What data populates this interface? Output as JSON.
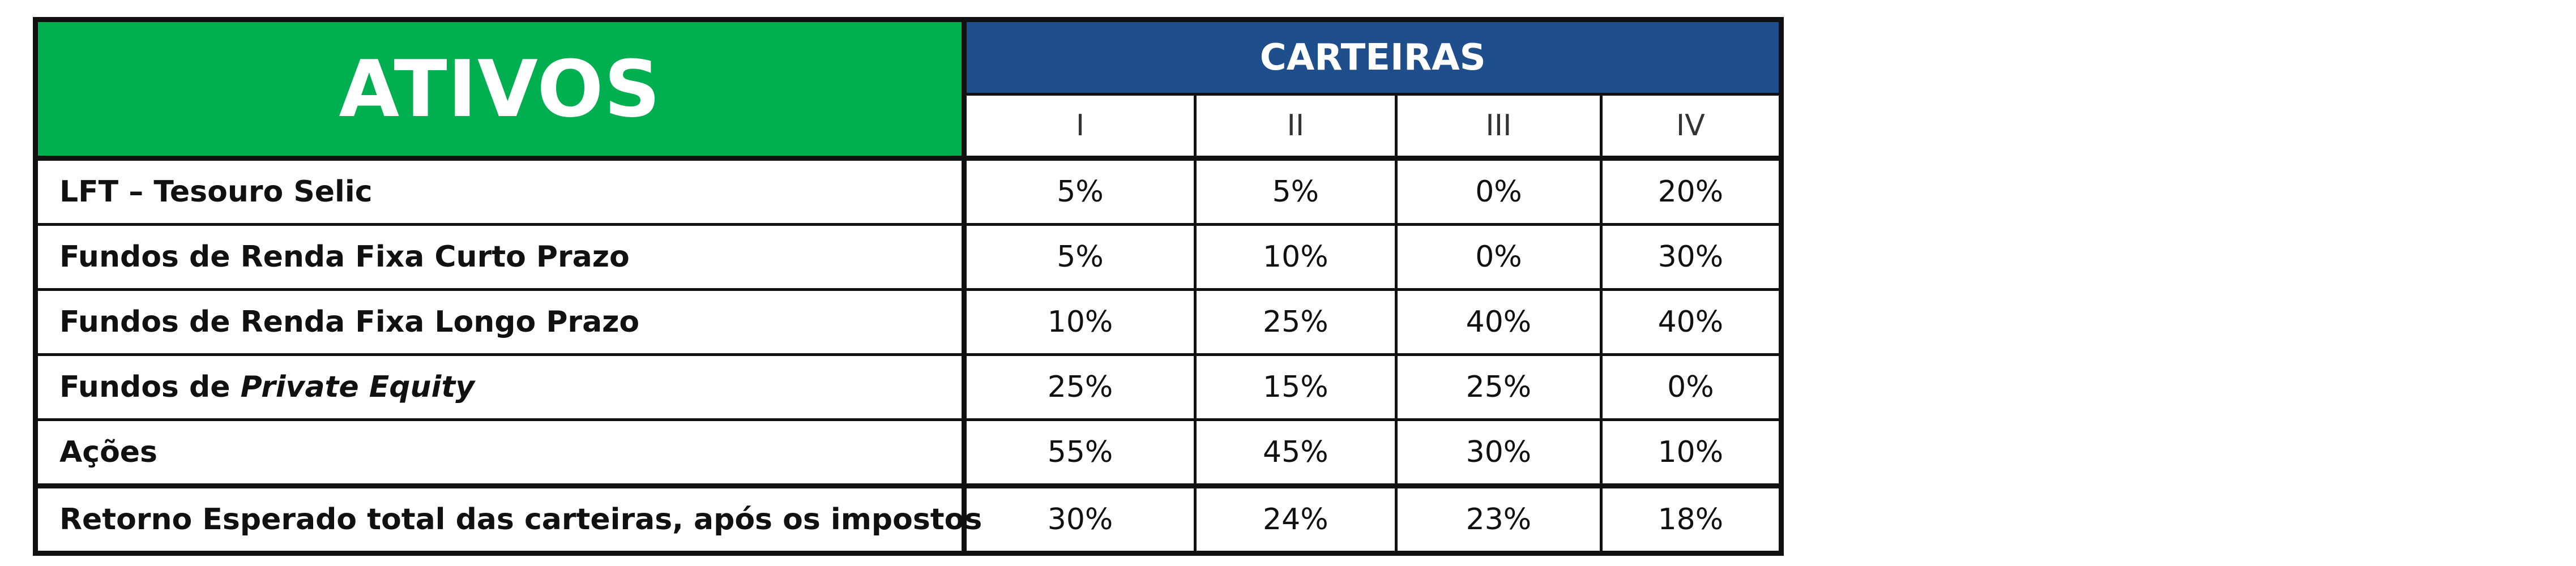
{
  "header": {
    "ativos_label": "ATIVOS",
    "carteiras_label": "CARTEIRAS",
    "portfolios": [
      "I",
      "II",
      "III",
      "IV"
    ]
  },
  "rows": [
    {
      "asset": "LFT – Tesouro Selic",
      "values": [
        "5%",
        "5%",
        "0%",
        "20%"
      ]
    },
    {
      "asset": "Fundos de Renda Fixa Curto Prazo",
      "values": [
        "5%",
        "10%",
        "0%",
        "30%"
      ]
    },
    {
      "asset": "Fundos de Renda Fixa Longo Prazo",
      "values": [
        "10%",
        "25%",
        "40%",
        "40%"
      ]
    },
    {
      "asset_prefix": "Fundos de ",
      "asset_italic": "Private Equity",
      "values": [
        "25%",
        "15%",
        "25%",
        "0%"
      ]
    },
    {
      "asset": "Ações",
      "values": [
        "55%",
        "45%",
        "30%",
        "10%"
      ]
    }
  ],
  "total": {
    "asset": "Retorno Esperado total das carteiras, após os impostos",
    "values": [
      "30%",
      "24%",
      "23%",
      "18%"
    ]
  },
  "colors": {
    "ativos_bg": "#00b050",
    "carteiras_bg": "#1f4e8c"
  }
}
